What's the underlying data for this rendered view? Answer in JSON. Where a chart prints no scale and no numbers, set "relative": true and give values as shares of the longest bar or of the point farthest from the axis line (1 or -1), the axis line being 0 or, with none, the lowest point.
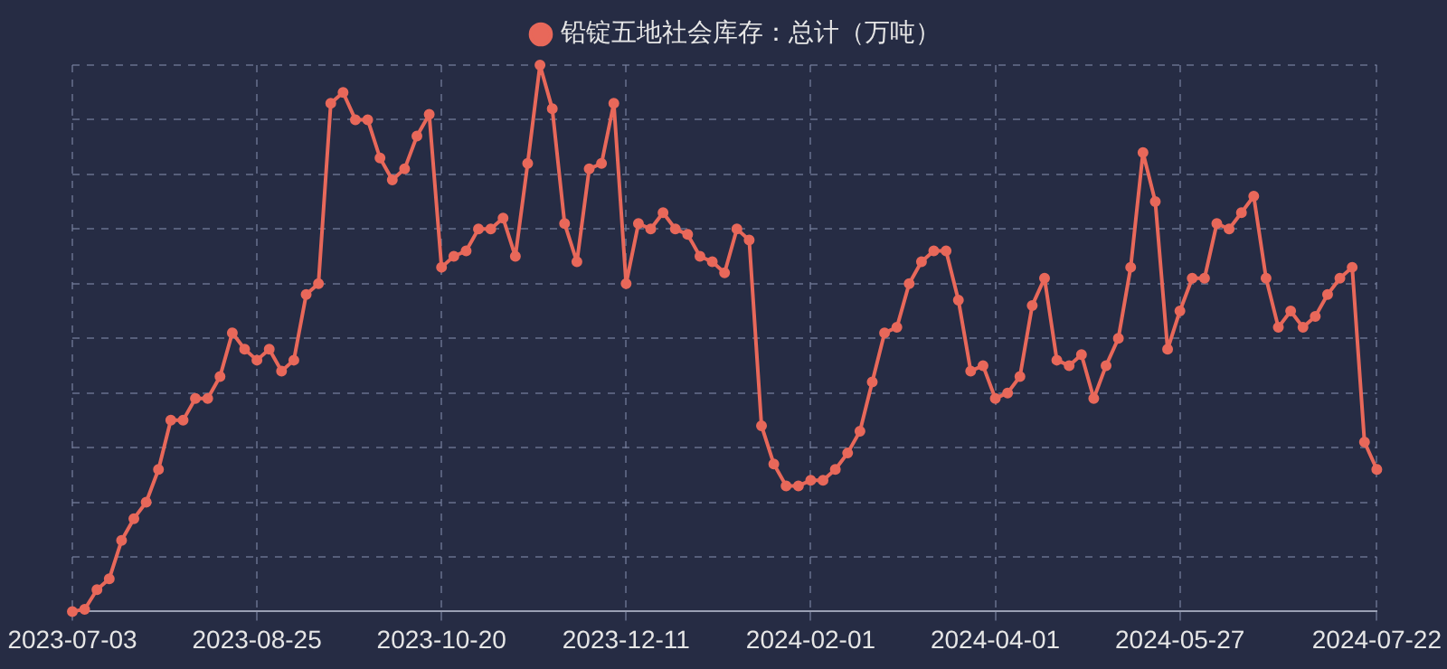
{
  "chart_data": {
    "type": "line",
    "relative": true,
    "grid": true,
    "legend": "top",
    "marker": "circle",
    "line_style": "solid",
    "categories": [
      "2023-07-03",
      null,
      null,
      null,
      null,
      null,
      null,
      null,
      null,
      null,
      null,
      null,
      null,
      null,
      null,
      "2023-08-25",
      null,
      null,
      null,
      null,
      null,
      null,
      null,
      null,
      null,
      null,
      null,
      null,
      null,
      null,
      "2023-10-20",
      null,
      null,
      null,
      null,
      null,
      null,
      null,
      null,
      null,
      null,
      null,
      null,
      null,
      null,
      "2023-12-11",
      null,
      null,
      null,
      null,
      null,
      null,
      null,
      null,
      null,
      null,
      null,
      null,
      null,
      null,
      "2024-02-01",
      null,
      null,
      null,
      null,
      null,
      null,
      null,
      null,
      null,
      null,
      null,
      null,
      null,
      null,
      "2024-04-01",
      null,
      null,
      null,
      null,
      null,
      null,
      null,
      null,
      null,
      null,
      null,
      null,
      null,
      null,
      "2024-05-27",
      null,
      null,
      null,
      null,
      null,
      null,
      null,
      null,
      null,
      null,
      null,
      null,
      null,
      null,
      null,
      "2024-07-22"
    ],
    "series": [
      {
        "name": "铅锭五地社会库存：总计（万吨）",
        "color": "#e8685a",
        "values": [
          0,
          0.004,
          0.04,
          0.06,
          0.13,
          0.17,
          0.2,
          0.26,
          0.35,
          0.35,
          0.39,
          0.39,
          0.43,
          0.51,
          0.48,
          0.46,
          0.48,
          0.44,
          0.46,
          0.58,
          0.6,
          0.93,
          0.95,
          0.9,
          0.9,
          0.83,
          0.79,
          0.81,
          0.87,
          0.91,
          0.63,
          0.65,
          0.66,
          0.7,
          0.7,
          0.72,
          0.65,
          0.82,
          1,
          0.92,
          0.71,
          0.64,
          0.81,
          0.82,
          0.93,
          0.6,
          0.71,
          0.7,
          0.73,
          0.7,
          0.69,
          0.65,
          0.64,
          0.62,
          0.7,
          0.68,
          0.34,
          0.27,
          0.23,
          0.23,
          0.24,
          0.24,
          0.26,
          0.29,
          0.33,
          0.42,
          0.51,
          0.52,
          0.6,
          0.64,
          0.66,
          0.66,
          0.57,
          0.44,
          0.45,
          0.39,
          0.4,
          0.43,
          0.56,
          0.61,
          0.46,
          0.45,
          0.47,
          0.39,
          0.45,
          0.5,
          0.63,
          0.84,
          0.75,
          0.48,
          0.55,
          0.61,
          0.61,
          0.71,
          0.7,
          0.73,
          0.76,
          0.61,
          0.52,
          0.55,
          0.52,
          0.54,
          0.58,
          0.61,
          0.63,
          0.31,
          0.26
        ]
      }
    ]
  }
}
